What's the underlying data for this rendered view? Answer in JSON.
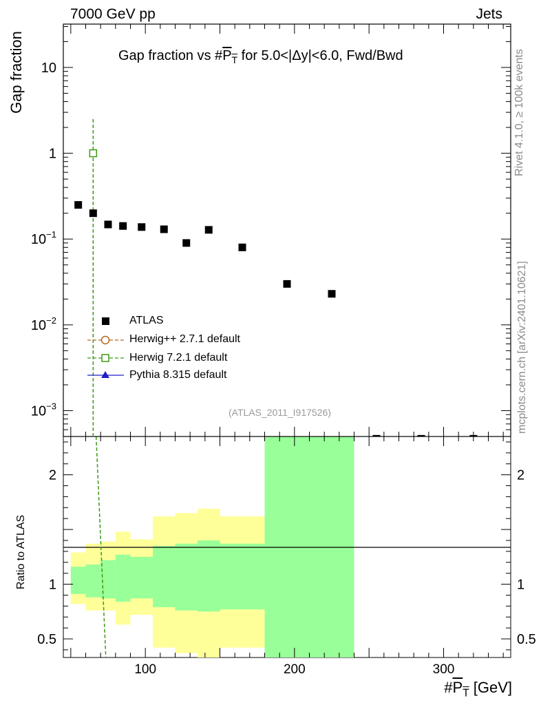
{
  "header": {
    "energy_label": "7000 GeV pp",
    "category_label": "Jets"
  },
  "side_labels": {
    "rivet": "Rivet 4.1.0, ≥ 100k events",
    "mcplots": "mcplots.cern.ch [arXiv:2401.10621]"
  },
  "chart_data": {
    "type": "scatter",
    "title": "Gap fraction vs #P_T for 5.0<|Δy|<6.0, Fwd/Bwd",
    "title_parts": {
      "pre": "Gap fraction vs #",
      "p": "P",
      "t": "T",
      "post": " for 5.0<|Δy|<6.0, Fwd/Bwd"
    },
    "xlabel": "#P_T [GeV]",
    "xlabel_parts": {
      "pre": "#",
      "p": "P",
      "t": "T",
      "post": " [GeV]"
    },
    "ylabel": "Gap fraction",
    "ratio_ylabel": "Ratio to ATLAS",
    "xlim": [
      45,
      345
    ],
    "ylim": [
      0.0005,
      32
    ],
    "yscale": "log",
    "ratio_ylim": [
      0.33,
      2.35
    ],
    "analysis_tag": "(ATLAS_2011_I917526)",
    "x_ticks": [
      {
        "value": 100,
        "label": "100"
      },
      {
        "value": 200,
        "label": "200"
      },
      {
        "value": 300,
        "label": "300"
      }
    ],
    "y_ticks": [
      {
        "value": 10,
        "base": "10",
        "exp": ""
      },
      {
        "value": 1,
        "base": "1",
        "exp": ""
      },
      {
        "value": 0.1,
        "base": "10",
        "exp": "−1"
      },
      {
        "value": 0.01,
        "base": "10",
        "exp": "−2"
      },
      {
        "value": 0.001,
        "base": "10",
        "exp": "−3"
      }
    ],
    "ratio_y_ticks": [
      {
        "value": 0.5,
        "label": "0.5"
      },
      {
        "value": 1,
        "label": "1"
      },
      {
        "value": 2,
        "label": "2"
      }
    ],
    "series": [
      {
        "name": "ATLAS",
        "color": "#000000",
        "marker": "square",
        "points": [
          {
            "x": 55,
            "y": 0.25
          },
          {
            "x": 65,
            "y": 0.2
          },
          {
            "x": 75,
            "y": 0.148
          },
          {
            "x": 85,
            "y": 0.142
          },
          {
            "x": 97.5,
            "y": 0.138
          },
          {
            "x": 112.5,
            "y": 0.13
          },
          {
            "x": 127.5,
            "y": 0.09
          },
          {
            "x": 142.5,
            "y": 0.128
          },
          {
            "x": 165,
            "y": 0.08
          },
          {
            "x": 195,
            "y": 0.03
          },
          {
            "x": 225,
            "y": 0.023
          },
          {
            "x": 255,
            "y": 0.00047
          },
          {
            "x": 285,
            "y": 0.00047
          },
          {
            "x": 320,
            "y": 0.00047
          }
        ]
      },
      {
        "name": "Herwig++ 2.7.1 default",
        "color": "#b8651e",
        "marker": "circle-open",
        "points": []
      },
      {
        "name": "Herwig 7.2.1 default",
        "color": "#3a9a14",
        "marker": "square-open",
        "points": [
          {
            "x": 65,
            "y": 1.0
          }
        ],
        "error_y": [
          0.0005,
          2.5
        ],
        "vertical_line_x": 65,
        "ratio_line": [
          {
            "x": 67,
            "y": 2.35
          },
          {
            "x": 73.5,
            "y": 0.33
          }
        ]
      },
      {
        "name": "Pythia 8.315 default",
        "color": "#1f1fc8",
        "marker": "triangle",
        "points": []
      }
    ],
    "ratio_bands": [
      {
        "x0": 50,
        "x1": 60,
        "yel": [
          0.82,
          1.29
        ],
        "grn": [
          0.91,
          1.16
        ]
      },
      {
        "x0": 60,
        "x1": 70,
        "yel": [
          0.76,
          1.37
        ],
        "grn": [
          0.88,
          1.18
        ]
      },
      {
        "x0": 70,
        "x1": 80,
        "yel": [
          0.76,
          1.39
        ],
        "grn": [
          0.87,
          1.22
        ]
      },
      {
        "x0": 80,
        "x1": 90,
        "yel": [
          0.63,
          1.48
        ],
        "grn": [
          0.84,
          1.27
        ]
      },
      {
        "x0": 90,
        "x1": 105,
        "yel": [
          0.72,
          1.41
        ],
        "grn": [
          0.87,
          1.25
        ]
      },
      {
        "x0": 105,
        "x1": 120,
        "yel": [
          0.42,
          1.62
        ],
        "grn": [
          0.79,
          1.35
        ]
      },
      {
        "x0": 120,
        "x1": 135,
        "yel": [
          0.37,
          1.65
        ],
        "grn": [
          0.76,
          1.37
        ]
      },
      {
        "x0": 135,
        "x1": 150,
        "yel": [
          0.3,
          1.69
        ],
        "grn": [
          0.75,
          1.4
        ]
      },
      {
        "x0": 150,
        "x1": 180,
        "yel": [
          0.42,
          1.62
        ],
        "grn": [
          0.77,
          1.37
        ]
      },
      {
        "x0": 180,
        "x1": 240,
        "yel": [
          0.3,
          2.4
        ],
        "grn": [
          0.3,
          2.4
        ]
      }
    ],
    "band_colors": {
      "yellow": "#ffff99",
      "green": "#99ff99"
    }
  }
}
